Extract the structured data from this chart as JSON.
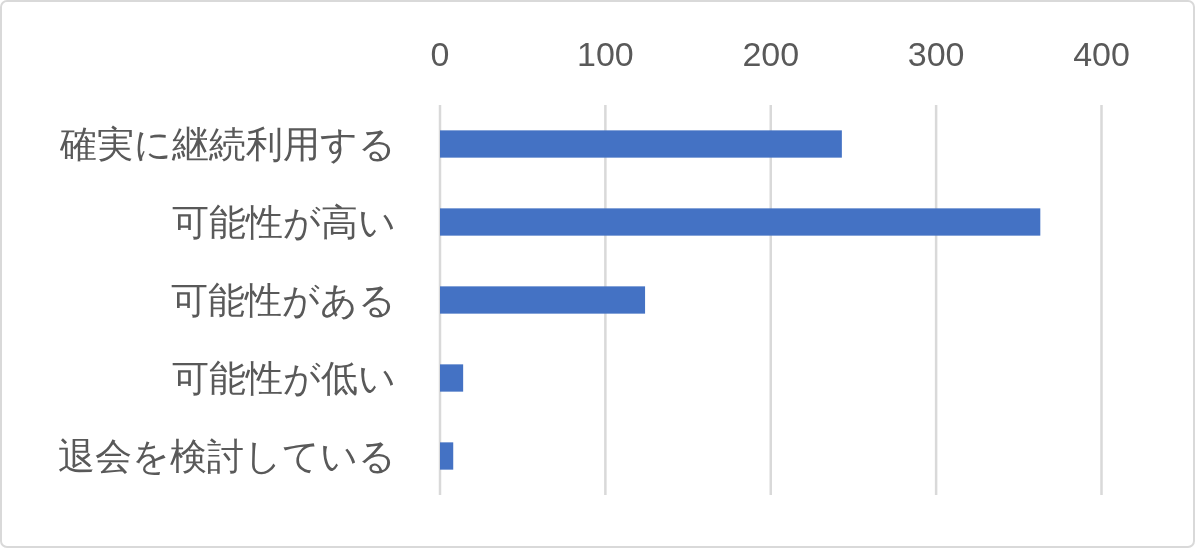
{
  "chart_data": {
    "type": "bar",
    "orientation": "horizontal",
    "categories": [
      "確実に継続利用する",
      "可能性が高い",
      "可能性がある",
      "可能性が低い",
      "退会を検討している"
    ],
    "values": [
      243,
      363,
      124,
      14,
      8
    ],
    "color": "#4472c4",
    "xlim": [
      0,
      400
    ],
    "xticks": [
      0,
      100,
      200,
      300,
      400
    ],
    "grid": "x"
  }
}
